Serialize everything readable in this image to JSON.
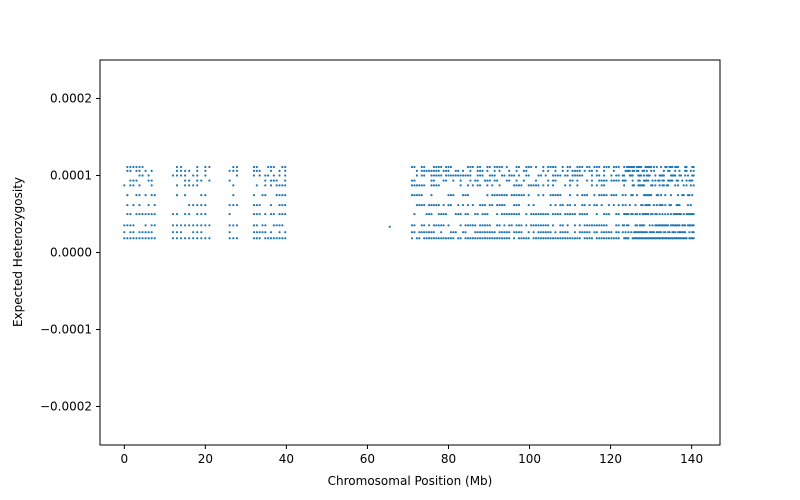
{
  "chart_data": {
    "type": "scatter",
    "title": "",
    "xlabel": "Chromosomal Position (Mb)",
    "ylabel": "Expected Heterozygosity",
    "xlim": [
      -6,
      147
    ],
    "ylim": [
      -0.00025,
      0.00025
    ],
    "xticks": [
      0,
      20,
      40,
      60,
      80,
      100,
      120,
      140
    ],
    "yticks": [
      -0.0002,
      -0.0001,
      0.0,
      0.0001,
      0.0002
    ],
    "xtick_labels": [
      "0",
      "20",
      "40",
      "60",
      "80",
      "100",
      "120",
      "140"
    ],
    "ytick_labels": [
      "−0.0002",
      "−0.0001",
      "0.0000",
      "0.0001",
      "0.0002"
    ],
    "grid": false,
    "legend": "none",
    "marker_color": "#1f77b4",
    "series": [
      {
        "y_levels": [
          1.85e-05,
          2.64e-05,
          3.53e-05,
          4.99e-05,
          6.16e-05,
          7.45e-05,
          8.72e-05,
          9.34e-05,
          0.0001,
          0.000106,
          0.000111
        ],
        "regions": [
          {
            "x_range": [
              0,
              8
            ],
            "step": 0.75
          },
          {
            "x_range": [
              12,
              21
            ],
            "step": 1.0
          },
          {
            "x_range": [
              26,
              28
            ],
            "step": 0.9
          },
          {
            "x_range": [
              32,
              40
            ],
            "step": 0.7
          },
          {
            "x_range": [
              71,
              122
            ],
            "step": 0.6
          },
          {
            "x_range": [
              123,
              140.5
            ],
            "step": 0.35
          }
        ],
        "extra_points": [
          [
            65.5,
            3.35e-05
          ]
        ]
      }
    ]
  }
}
